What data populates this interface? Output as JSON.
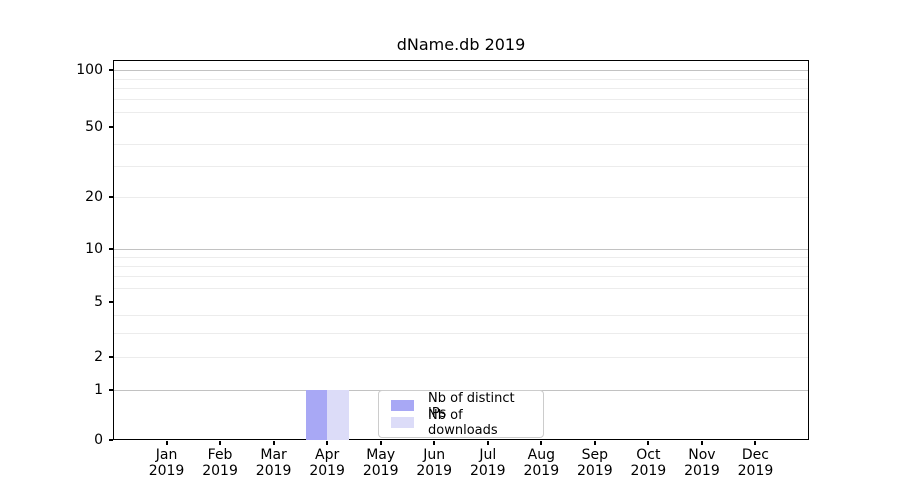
{
  "chart_data": {
    "type": "bar",
    "title": "dName.db 2019",
    "categories": [
      "Jan 2019",
      "Feb 2019",
      "Mar 2019",
      "Apr 2019",
      "May 2019",
      "Jun 2019",
      "Jul 2019",
      "Aug 2019",
      "Sep 2019",
      "Oct 2019",
      "Nov 2019",
      "Dec 2019"
    ],
    "series": [
      {
        "name": "Nb of distinct IPs",
        "color": "#a8a8f5",
        "values": [
          0,
          0,
          0,
          1,
          0,
          0,
          0,
          0,
          0,
          0,
          0,
          0
        ]
      },
      {
        "name": "Nb of downloads",
        "color": "#dcdcf8",
        "values": [
          0,
          0,
          0,
          1,
          0,
          0,
          0,
          0,
          0,
          0,
          0,
          0
        ]
      }
    ],
    "xlabel": "",
    "ylabel": "",
    "yscale": "symlog",
    "ylim": [
      0,
      113
    ],
    "yticks": [
      0,
      1,
      2,
      5,
      10,
      20,
      50,
      100
    ],
    "grid_major_values": [
      1,
      10,
      100
    ],
    "grid_minor_values": [
      2,
      3,
      4,
      6,
      7,
      8,
      9,
      20,
      30,
      40,
      60,
      70,
      80,
      90
    ],
    "grid": "horizontal",
    "legend_position": "bottom-center"
  },
  "colors": {
    "axis": "#000000",
    "grid_minor": "#ececec",
    "grid_major": "#c2c2c2",
    "legend_border": "#cccccc",
    "background": "#ffffff"
  }
}
